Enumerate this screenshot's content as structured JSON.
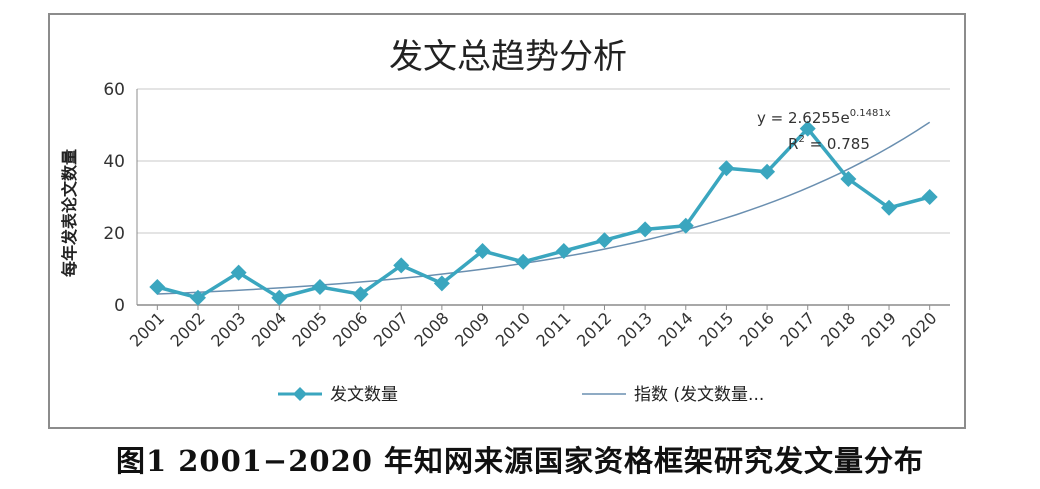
{
  "chart_data": {
    "type": "line",
    "title": "发文总趋势分析",
    "ylabel": "每年发表论文数量",
    "xlabel": "",
    "ylim": [
      0,
      60
    ],
    "yticks": [
      0,
      20,
      40,
      60
    ],
    "grid": true,
    "legend_position": "bottom",
    "categories": [
      "2001",
      "2002",
      "2003",
      "2004",
      "2005",
      "2006",
      "2007",
      "2008",
      "2009",
      "2010",
      "2011",
      "2012",
      "2013",
      "2014",
      "2015",
      "2016",
      "2017",
      "2018",
      "2019",
      "2020"
    ],
    "series": [
      {
        "name": "发文数量",
        "values": [
          5,
          2,
          9,
          2,
          5,
          3,
          11,
          6,
          15,
          12,
          15,
          18,
          21,
          22,
          38,
          37,
          49,
          35,
          27,
          30
        ],
        "color": "#3aa6bf",
        "marker": "diamond"
      }
    ],
    "trendline": {
      "type": "exponential",
      "legend_label": "指数 (发文数量...",
      "a": 2.6255,
      "b": 0.1481,
      "color": "#6a8fb0"
    },
    "annotations": {
      "equation_prefix": "y = 2.6255e",
      "equation_exponent": "0.1481x",
      "r2_prefix": "R",
      "r2_power": "2",
      "r2_value": " = 0.785"
    }
  },
  "caption": "图1   2001−2020 年知网来源国家资格框架研究发文量分布"
}
